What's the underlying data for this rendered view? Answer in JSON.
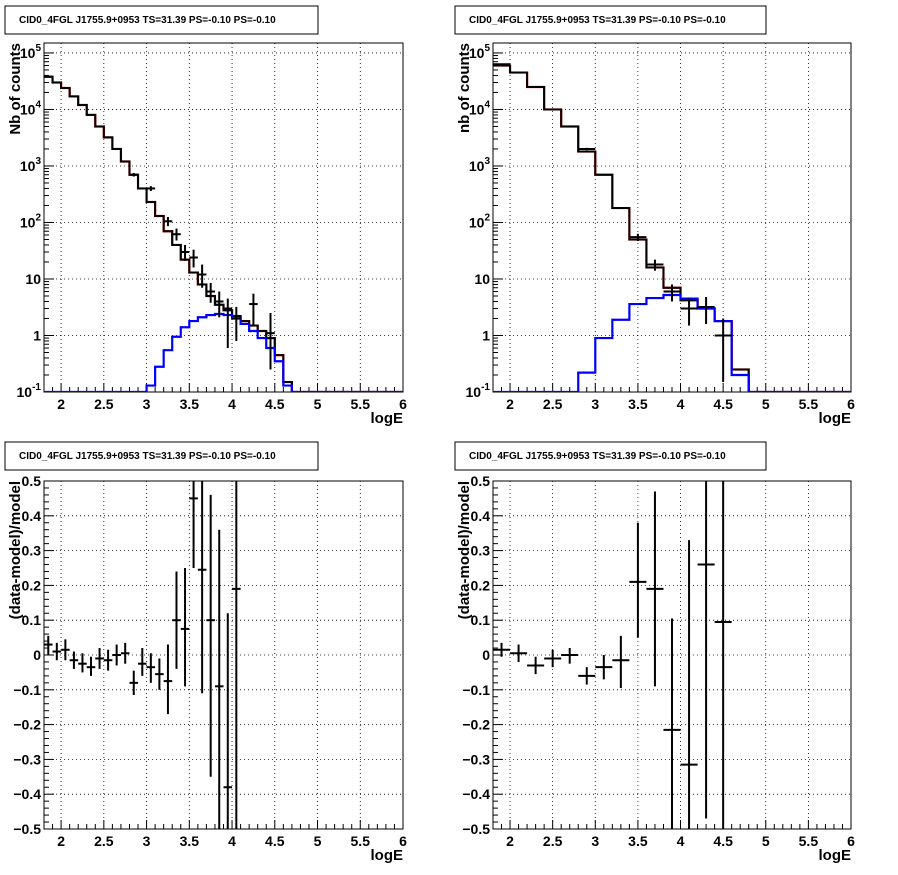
{
  "chart_data": [
    {
      "type": "step-histogram",
      "title": "CID0_4FGL J1755.9+0953 TS=31.39 PS=-0.10 PS=-0.10",
      "xlabel": "logE",
      "ylabel": "Nb of counts",
      "yscale": "log",
      "xlim": [
        1.8,
        6
      ],
      "ylim": [
        0.1,
        150000
      ],
      "grid": true,
      "x_ticks": [
        "2",
        "2.5",
        "3",
        "3.5",
        "4",
        "4.5",
        "5",
        "5.5",
        "6"
      ],
      "y_ticks": [
        "10^-1",
        "1",
        "10",
        "10^2",
        "10^3",
        "10^4",
        "10^5"
      ],
      "series": [
        {
          "color": "#ff0000",
          "bin_edges": [
            1.8,
            1.9,
            2.0,
            2.1,
            2.2,
            2.3,
            2.4,
            2.5,
            2.6,
            2.7,
            2.8,
            2.9,
            3.0,
            3.1,
            3.2,
            3.3,
            3.4,
            3.5,
            3.6,
            3.7,
            3.8,
            3.9,
            4.0,
            4.1,
            4.2,
            4.3,
            4.4,
            4.5,
            4.6,
            4.7,
            4.8,
            4.9,
            5.0,
            5.1,
            5.2,
            5.3,
            5.4,
            5.5,
            5.6,
            5.7,
            5.8,
            5.9,
            6.0
          ],
          "values": [
            38000,
            30000,
            24000,
            17000,
            12000,
            8000,
            5000,
            3200,
            2000,
            1200,
            700,
            400,
            230,
            130,
            70,
            40,
            22,
            13,
            8,
            5,
            3.5,
            2.8,
            2.2,
            1.8,
            1.5,
            1.2,
            0.9,
            0.45,
            0.15,
            0.1,
            0.1,
            0.1,
            0.1,
            0.1,
            0.1,
            0.1,
            0.1,
            0.1,
            0.1,
            0.1,
            0.1,
            0.1
          ]
        },
        {
          "color": "#000000",
          "bin_edges": [
            1.8,
            1.9,
            2.0,
            2.1,
            2.2,
            2.3,
            2.4,
            2.5,
            2.6,
            2.7,
            2.8,
            2.9,
            3.0,
            3.1,
            3.2,
            3.3,
            3.4,
            3.5,
            3.6,
            3.7,
            3.8,
            3.9,
            4.0,
            4.1,
            4.2,
            4.3,
            4.4,
            4.5,
            4.6,
            4.7,
            4.8,
            4.9,
            5.0,
            5.1,
            5.2,
            5.3,
            5.4,
            5.5,
            5.6,
            5.7,
            5.8,
            5.9,
            6.0
          ],
          "values": [
            38000,
            30000,
            24000,
            17000,
            12000,
            8000,
            5000,
            3200,
            2000,
            1200,
            700,
            400,
            230,
            130,
            70,
            40,
            22,
            13,
            8,
            5,
            3.5,
            2.8,
            2.2,
            1.8,
            1.5,
            1.2,
            0.9,
            0.45,
            0.15,
            0.1,
            0.1,
            0.1,
            0.1,
            0.1,
            0.1,
            0.1,
            0.1,
            0.1,
            0.1,
            0.1,
            0.1,
            0.1
          ]
        },
        {
          "color": "#0000ff",
          "bin_edges": [
            1.8,
            1.9,
            2.0,
            2.1,
            2.2,
            2.3,
            2.4,
            2.5,
            2.6,
            2.7,
            2.8,
            2.9,
            3.0,
            3.1,
            3.2,
            3.3,
            3.4,
            3.5,
            3.6,
            3.7,
            3.8,
            3.9,
            4.0,
            4.1,
            4.2,
            4.3,
            4.4,
            4.5,
            4.6,
            4.7,
            4.8,
            4.9,
            5.0,
            5.1,
            5.2,
            5.3,
            5.4,
            5.5,
            5.6,
            5.7,
            5.8,
            5.9,
            6.0
          ],
          "values": [
            0.1,
            0.1,
            0.1,
            0.1,
            0.1,
            0.1,
            0.1,
            0.1,
            0.1,
            0.1,
            0.1,
            0.1,
            0.13,
            0.28,
            0.55,
            0.95,
            1.4,
            1.8,
            2.1,
            2.3,
            2.4,
            2.3,
            2.0,
            1.6,
            1.2,
            0.9,
            0.6,
            0.35,
            0.13,
            0.1,
            0.1,
            0.1,
            0.1,
            0.1,
            0.1,
            0.1,
            0.1,
            0.1,
            0.1,
            0.1,
            0.1,
            0.1
          ]
        }
      ],
      "points": [
        {
          "x": 1.85,
          "y": 38000,
          "ylo": 36500,
          "yhi": 39500,
          "xerr": 0.05
        },
        {
          "x": 2.55,
          "y": 3200,
          "ylo": 3090,
          "yhi": 3310,
          "xerr": 0.05
        },
        {
          "x": 2.85,
          "y": 700,
          "ylo": 650,
          "yhi": 750,
          "xerr": 0.05
        },
        {
          "x": 3.05,
          "y": 400,
          "ylo": 360,
          "yhi": 440,
          "xerr": 0.05
        },
        {
          "x": 3.25,
          "y": 105,
          "ylo": 86,
          "yhi": 125,
          "xerr": 0.05
        },
        {
          "x": 3.35,
          "y": 62,
          "ylo": 48,
          "yhi": 78,
          "xerr": 0.05
        },
        {
          "x": 3.45,
          "y": 30,
          "ylo": 21,
          "yhi": 40,
          "xerr": 0.05
        },
        {
          "x": 3.55,
          "y": 24,
          "ylo": 16,
          "yhi": 33,
          "xerr": 0.05
        },
        {
          "x": 3.65,
          "y": 12,
          "ylo": 7,
          "yhi": 18,
          "xerr": 0.05
        },
        {
          "x": 3.75,
          "y": 6,
          "ylo": 3.8,
          "yhi": 8.5,
          "xerr": 0.05
        },
        {
          "x": 3.85,
          "y": 4,
          "ylo": 2.1,
          "yhi": 6,
          "xerr": 0.05
        },
        {
          "x": 3.95,
          "y": 3,
          "ylo": 0.6,
          "yhi": 4.5,
          "xerr": 0.05
        },
        {
          "x": 4.05,
          "y": 2,
          "ylo": 0.8,
          "yhi": 3.2,
          "xerr": 0.05
        },
        {
          "x": 4.25,
          "y": 3.6,
          "ylo": 1.5,
          "yhi": 5.5,
          "xerr": 0.05
        },
        {
          "x": 4.45,
          "y": 1.1,
          "ylo": 0.25,
          "yhi": 2.5,
          "xerr": 0.05
        }
      ]
    },
    {
      "type": "step-histogram",
      "title": "CID0_4FGL J1755.9+0953 TS=31.39 PS=-0.10 PS=-0.10",
      "xlabel": "logE",
      "ylabel": "nb of counts",
      "yscale": "log",
      "xlim": [
        1.8,
        6
      ],
      "ylim": [
        0.1,
        150000
      ],
      "grid": true,
      "x_ticks": [
        "2",
        "2.5",
        "3",
        "3.5",
        "4",
        "4.5",
        "5",
        "5.5",
        "6"
      ],
      "y_ticks": [
        "10^-1",
        "1",
        "10",
        "10^2",
        "10^3",
        "10^4",
        "10^5"
      ],
      "series": [
        {
          "color": "#ff0000",
          "bin_edges": [
            1.8,
            2.0,
            2.2,
            2.4,
            2.6,
            2.8,
            3.0,
            3.2,
            3.4,
            3.6,
            3.8,
            4.0,
            4.2,
            4.4,
            4.6,
            4.8,
            5.0,
            5.2,
            5.4,
            5.6,
            5.8,
            6.0
          ],
          "values": [
            60000,
            45000,
            25000,
            10000,
            5000,
            1800,
            700,
            180,
            50,
            16,
            7,
            4.2,
            3,
            1.8,
            0.25,
            0.1,
            0.1,
            0.1,
            0.1,
            0.1,
            0.1
          ]
        },
        {
          "color": "#000000",
          "bin_edges": [
            1.8,
            2.0,
            2.2,
            2.4,
            2.6,
            2.8,
            3.0,
            3.2,
            3.4,
            3.6,
            3.8,
            4.0,
            4.2,
            4.4,
            4.6,
            4.8,
            5.0,
            5.2,
            5.4,
            5.6,
            5.8,
            6.0
          ],
          "values": [
            60000,
            45000,
            25000,
            10000,
            5000,
            1800,
            700,
            180,
            50,
            16,
            7,
            4.2,
            3,
            1.8,
            0.25,
            0.1,
            0.1,
            0.1,
            0.1,
            0.1,
            0.1
          ]
        },
        {
          "color": "#0000ff",
          "bin_edges": [
            1.8,
            2.0,
            2.2,
            2.4,
            2.6,
            2.8,
            3.0,
            3.2,
            3.4,
            3.6,
            3.8,
            4.0,
            4.2,
            4.4,
            4.6,
            4.8,
            5.0,
            5.2,
            5.4,
            5.6,
            5.8,
            6.0
          ],
          "values": [
            0.1,
            0.1,
            0.1,
            0.1,
            0.1,
            0.22,
            0.9,
            1.9,
            3.6,
            4.6,
            5.2,
            4.5,
            3.0,
            1.8,
            0.2,
            0.1,
            0.1,
            0.1,
            0.1,
            0.1,
            0.1
          ]
        }
      ],
      "points": [
        {
          "x": 1.9,
          "y": 63000,
          "ylo": 61500,
          "yhi": 64500,
          "xerr": 0.1
        },
        {
          "x": 2.9,
          "y": 2000,
          "ylo": 1900,
          "yhi": 2100,
          "xerr": 0.1
        },
        {
          "x": 3.5,
          "y": 55,
          "ylo": 47,
          "yhi": 63,
          "xerr": 0.1
        },
        {
          "x": 3.7,
          "y": 18,
          "ylo": 14,
          "yhi": 22,
          "xerr": 0.1
        },
        {
          "x": 3.9,
          "y": 6,
          "ylo": 4,
          "yhi": 8,
          "xerr": 0.1
        },
        {
          "x": 4.1,
          "y": 3,
          "ylo": 1.5,
          "yhi": 4.5,
          "xerr": 0.1
        },
        {
          "x": 4.3,
          "y": 3.2,
          "ylo": 1.6,
          "yhi": 4.8,
          "xerr": 0.1
        },
        {
          "x": 4.5,
          "y": 1,
          "ylo": 0.15,
          "yhi": 2,
          "xerr": 0.1
        }
      ]
    },
    {
      "type": "scatter",
      "title": "CID0_4FGL J1755.9+0953 TS=31.39 PS=-0.10 PS=-0.10",
      "xlabel": "logE",
      "ylabel": "(data-model)/model",
      "xlim": [
        1.8,
        6
      ],
      "ylim": [
        -0.5,
        0.5
      ],
      "grid": true,
      "x_ticks": [
        "2",
        "2.5",
        "3",
        "3.5",
        "4",
        "4.5",
        "5",
        "5.5",
        "6"
      ],
      "y_ticks": [
        "−0.5",
        "−0.4",
        "−0.3",
        "−0.2",
        "−0.1",
        "0",
        "0.1",
        "0.2",
        "0.3",
        "0.4",
        "0.5"
      ],
      "points": [
        {
          "x": 1.85,
          "y": 0.03,
          "ylo": 0.0,
          "yhi": 0.055,
          "xerr": 0.05
        },
        {
          "x": 1.95,
          "y": 0.01,
          "ylo": -0.015,
          "yhi": 0.035,
          "xerr": 0.05
        },
        {
          "x": 2.05,
          "y": 0.015,
          "ylo": -0.015,
          "yhi": 0.045,
          "xerr": 0.05
        },
        {
          "x": 2.15,
          "y": -0.015,
          "ylo": -0.04,
          "yhi": 0.01,
          "xerr": 0.05
        },
        {
          "x": 2.25,
          "y": -0.025,
          "ylo": -0.05,
          "yhi": 0.005,
          "xerr": 0.05
        },
        {
          "x": 2.35,
          "y": -0.035,
          "ylo": -0.06,
          "yhi": -0.005,
          "xerr": 0.05
        },
        {
          "x": 2.45,
          "y": -0.01,
          "ylo": -0.04,
          "yhi": 0.02,
          "xerr": 0.05
        },
        {
          "x": 2.55,
          "y": -0.015,
          "ylo": -0.045,
          "yhi": 0.015,
          "xerr": 0.05
        },
        {
          "x": 2.65,
          "y": 0.0,
          "ylo": -0.03,
          "yhi": 0.03,
          "xerr": 0.05
        },
        {
          "x": 2.75,
          "y": 0.005,
          "ylo": -0.025,
          "yhi": 0.035,
          "xerr": 0.05
        },
        {
          "x": 2.85,
          "y": -0.08,
          "ylo": -0.115,
          "yhi": -0.045,
          "xerr": 0.05
        },
        {
          "x": 2.95,
          "y": -0.025,
          "ylo": -0.06,
          "yhi": 0.02,
          "xerr": 0.05
        },
        {
          "x": 3.05,
          "y": -0.035,
          "ylo": -0.08,
          "yhi": 0.005,
          "xerr": 0.05
        },
        {
          "x": 3.15,
          "y": -0.055,
          "ylo": -0.1,
          "yhi": -0.01,
          "xerr": 0.05
        },
        {
          "x": 3.25,
          "y": -0.075,
          "ylo": -0.17,
          "yhi": 0.03,
          "xerr": 0.05
        },
        {
          "x": 3.35,
          "y": 0.1,
          "ylo": -0.04,
          "yhi": 0.24,
          "xerr": 0.05
        },
        {
          "x": 3.45,
          "y": 0.075,
          "ylo": -0.09,
          "yhi": 0.25,
          "xerr": 0.05
        },
        {
          "x": 3.55,
          "y": 0.45,
          "ylo": 0.25,
          "yhi": 0.5,
          "xerr": 0.05
        },
        {
          "x": 3.65,
          "y": 0.245,
          "ylo": -0.11,
          "yhi": 0.5,
          "xerr": 0.05
        },
        {
          "x": 3.75,
          "y": 0.1,
          "ylo": -0.35,
          "yhi": 0.46,
          "xerr": 0.05
        },
        {
          "x": 3.85,
          "y": -0.09,
          "ylo": -0.5,
          "yhi": 0.36,
          "xerr": 0.05
        },
        {
          "x": 3.95,
          "y": -0.38,
          "ylo": -0.5,
          "yhi": 0.12,
          "xerr": 0.05
        },
        {
          "x": 4.05,
          "y": 0.19,
          "ylo": -0.5,
          "yhi": 0.5,
          "xerr": 0.05
        }
      ]
    },
    {
      "type": "scatter",
      "title": "CID0_4FGL J1755.9+0953 TS=31.39 PS=-0.10 PS=-0.10",
      "xlabel": "logE",
      "ylabel": "(data-model)/model",
      "xlim": [
        1.8,
        6
      ],
      "ylim": [
        -0.5,
        0.5
      ],
      "grid": true,
      "x_ticks": [
        "2",
        "2.5",
        "3",
        "3.5",
        "4",
        "4.5",
        "5",
        "5.5",
        "6"
      ],
      "y_ticks": [
        "−0.5",
        "−0.4",
        "−0.3",
        "−0.2",
        "−0.1",
        "0",
        "0.1",
        "0.2",
        "0.3",
        "0.4",
        "0.5"
      ],
      "points": [
        {
          "x": 1.9,
          "y": 0.015,
          "ylo": -0.005,
          "yhi": 0.035,
          "xerr": 0.1
        },
        {
          "x": 2.1,
          "y": 0.005,
          "ylo": -0.02,
          "yhi": 0.03,
          "xerr": 0.1
        },
        {
          "x": 2.3,
          "y": -0.03,
          "ylo": -0.055,
          "yhi": -0.005,
          "xerr": 0.1
        },
        {
          "x": 2.5,
          "y": -0.01,
          "ylo": -0.035,
          "yhi": 0.015,
          "xerr": 0.1
        },
        {
          "x": 2.7,
          "y": 0.0,
          "ylo": -0.025,
          "yhi": 0.02,
          "xerr": 0.1
        },
        {
          "x": 2.9,
          "y": -0.06,
          "ylo": -0.085,
          "yhi": -0.035,
          "xerr": 0.1
        },
        {
          "x": 3.1,
          "y": -0.035,
          "ylo": -0.07,
          "yhi": 0.0,
          "xerr": 0.1
        },
        {
          "x": 3.3,
          "y": -0.015,
          "ylo": -0.095,
          "yhi": 0.055,
          "xerr": 0.1
        },
        {
          "x": 3.5,
          "y": 0.21,
          "ylo": 0.05,
          "yhi": 0.38,
          "xerr": 0.1
        },
        {
          "x": 3.7,
          "y": 0.19,
          "ylo": -0.09,
          "yhi": 0.47,
          "xerr": 0.1
        },
        {
          "x": 3.9,
          "y": -0.215,
          "ylo": -0.5,
          "yhi": 0.105,
          "xerr": 0.1
        },
        {
          "x": 4.1,
          "y": -0.315,
          "ylo": -0.5,
          "yhi": 0.33,
          "xerr": 0.1
        },
        {
          "x": 4.3,
          "y": 0.26,
          "ylo": -0.47,
          "yhi": 0.5,
          "xerr": 0.1
        },
        {
          "x": 4.5,
          "y": 0.095,
          "ylo": -0.5,
          "yhi": 0.5,
          "xerr": 0.1
        }
      ]
    }
  ]
}
